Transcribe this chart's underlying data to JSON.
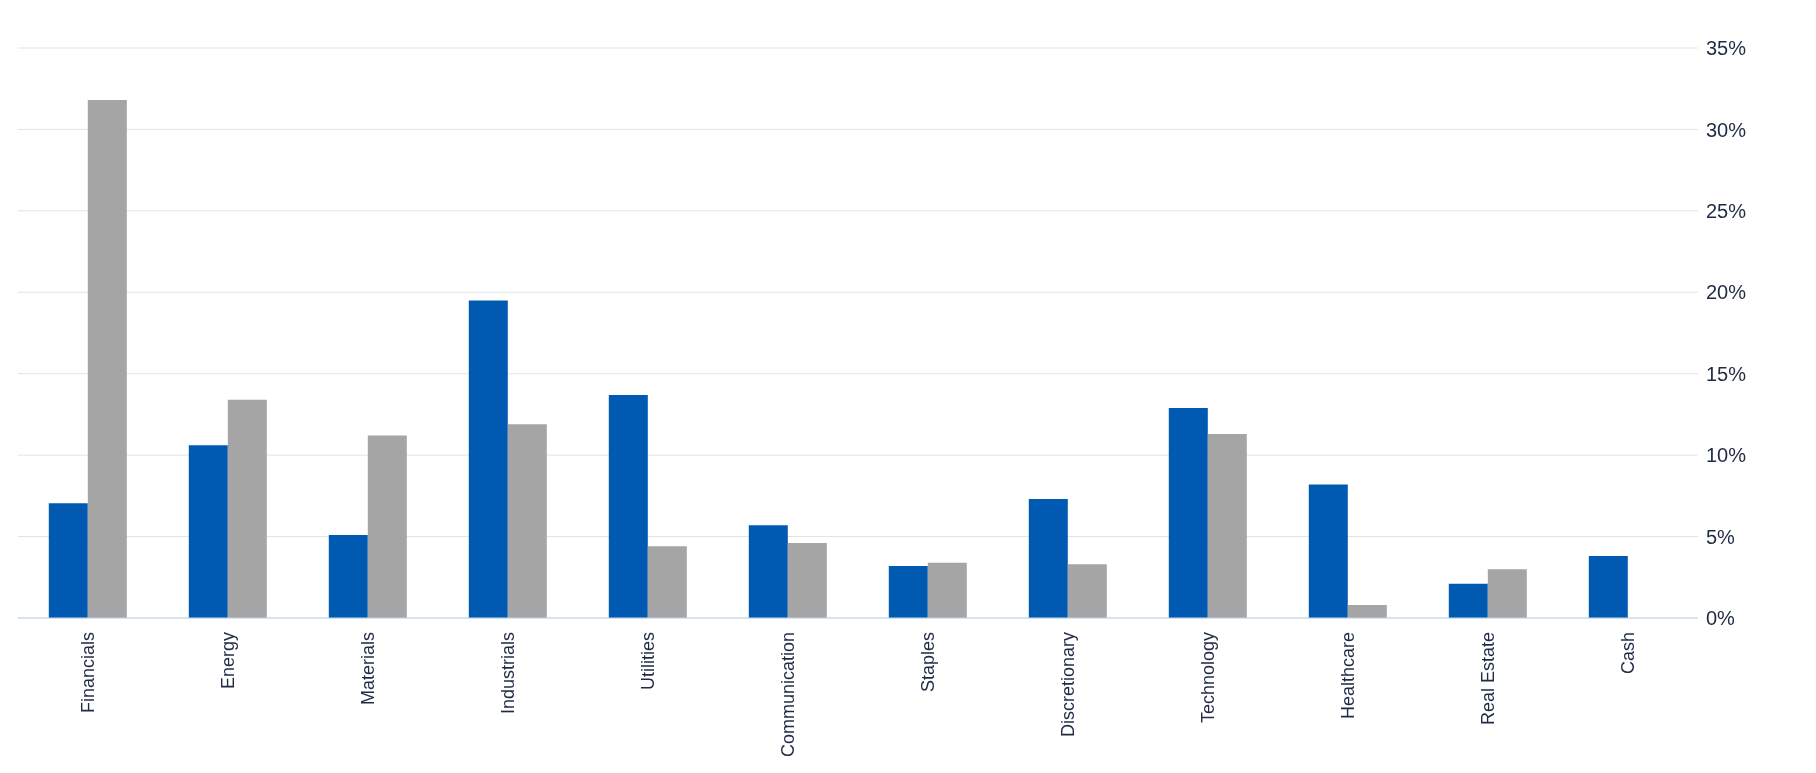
{
  "chart_data": {
    "type": "bar",
    "categories": [
      "Financials",
      "Energy",
      "Materials",
      "Industrials",
      "Utilities",
      "Communication",
      "Staples",
      "Discretionary",
      "Technology",
      "Healthcare",
      "Real Estate",
      "Cash"
    ],
    "series": [
      {
        "color": "#005ab1",
        "values": [
          7.05,
          10.6,
          5.1,
          19.5,
          13.7,
          5.7,
          3.2,
          7.3,
          12.9,
          8.2,
          2.1,
          3.8
        ]
      },
      {
        "color": "#a5a5a5",
        "values": [
          31.8,
          13.4,
          11.2,
          11.9,
          4.4,
          4.6,
          3.4,
          3.3,
          11.3,
          0.8,
          3.0,
          null
        ]
      }
    ],
    "ylim": [
      0,
      35
    ],
    "yticks": [
      {
        "value": 0,
        "label": "0%"
      },
      {
        "value": 5,
        "label": "5%"
      },
      {
        "value": 10,
        "label": "10%"
      },
      {
        "value": 15,
        "label": "15%"
      },
      {
        "value": 20,
        "label": "20%"
      },
      {
        "value": 25,
        "label": "25%"
      },
      {
        "value": 30,
        "label": "30%"
      },
      {
        "value": 35,
        "label": "35%"
      }
    ],
    "grid": "y"
  }
}
